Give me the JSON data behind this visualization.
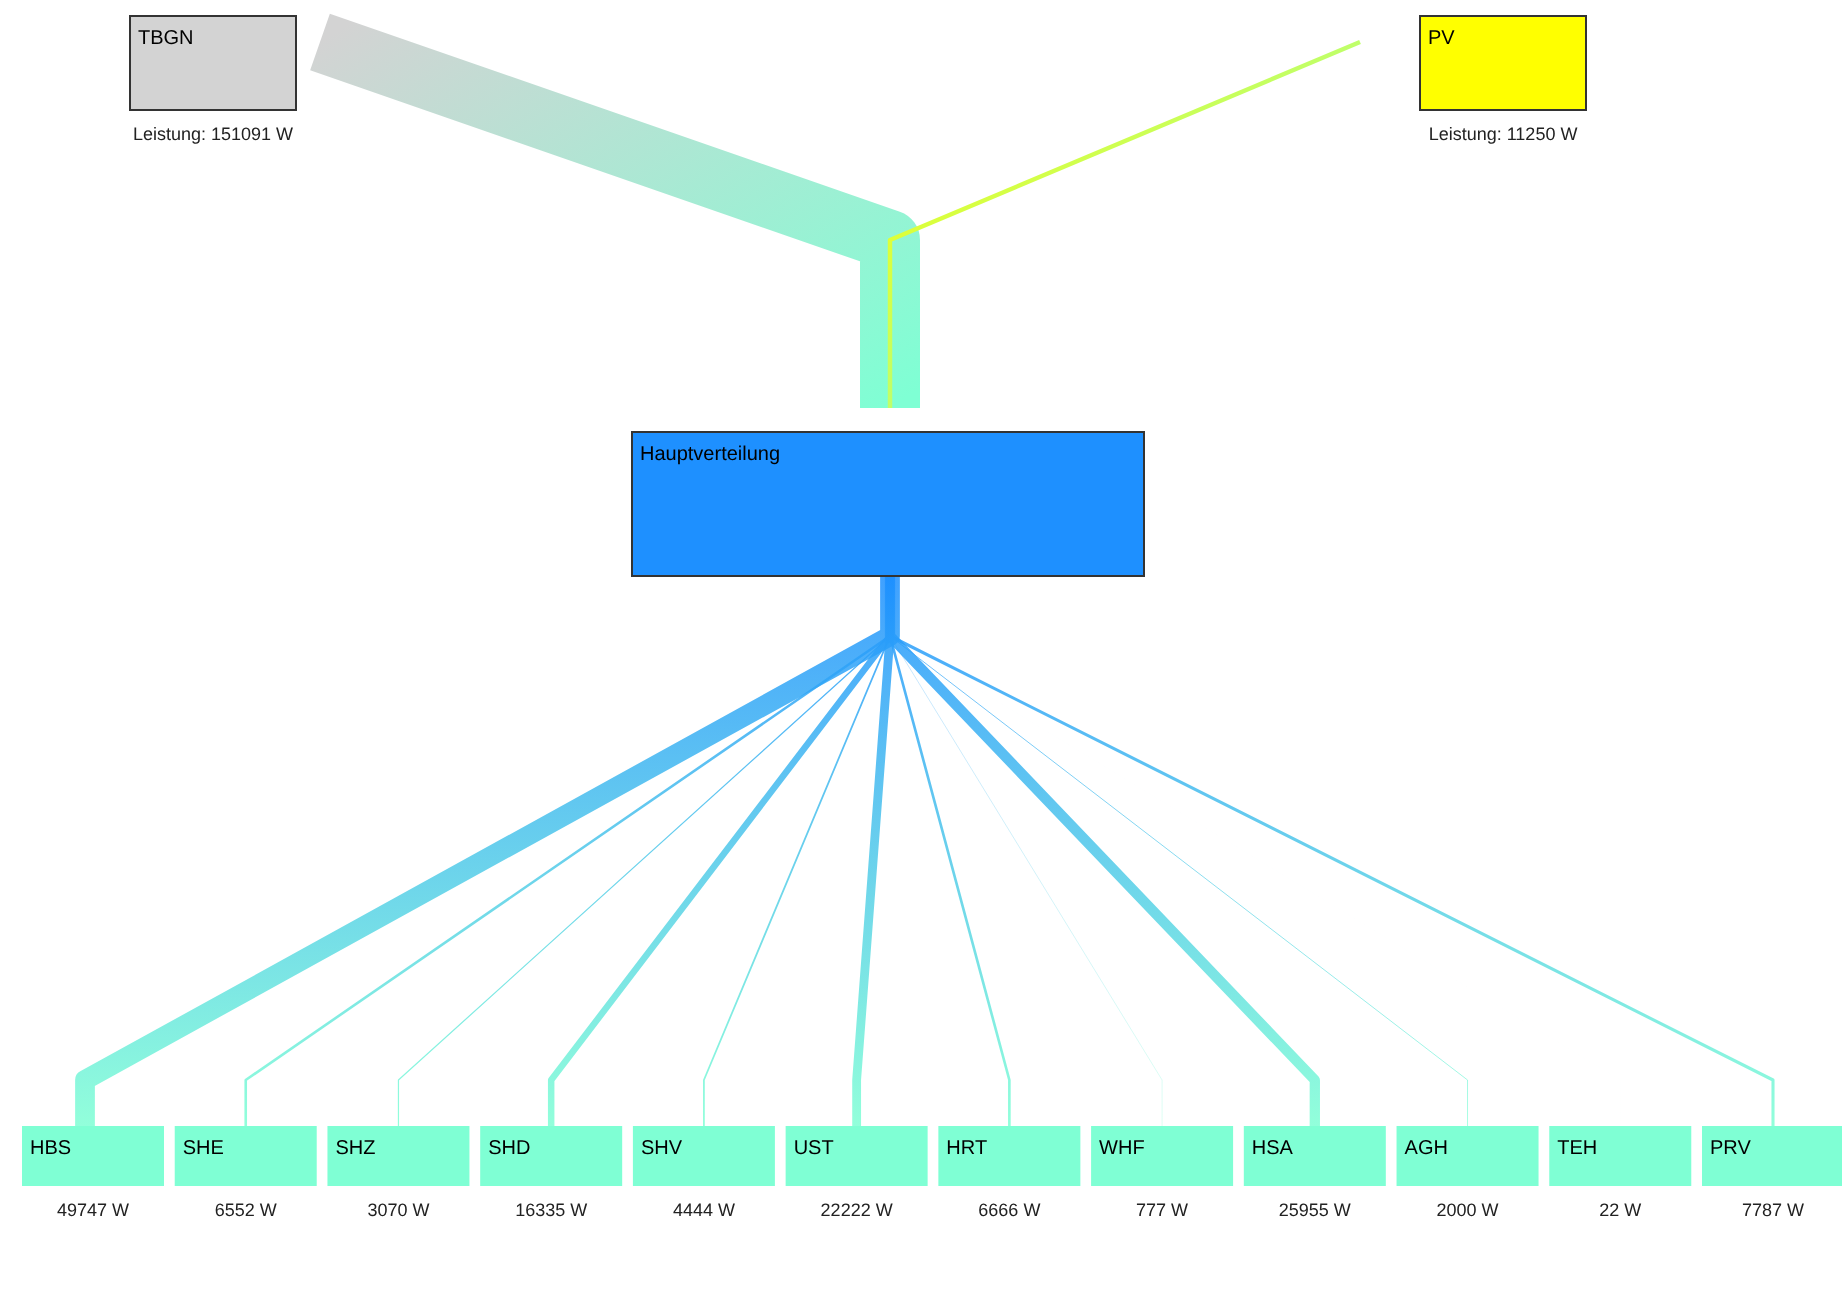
{
  "chart_data": {
    "type": "other",
    "categories": [
      "TBGN",
      "PV",
      "Hauptverteilung",
      "HBS",
      "SHE",
      "SHZ",
      "SHD",
      "SHV",
      "UST",
      "HRT",
      "WHF",
      "HSA",
      "AGH",
      "TEH",
      "PRV"
    ],
    "values": [
      151091,
      11250,
      null,
      49747,
      6552,
      3070,
      16335,
      4444,
      22222,
      6666,
      777,
      25955,
      2000,
      22,
      7787
    ],
    "value_labels": [
      "Leistung: 151091 W",
      "Leistung: 11250 W",
      null,
      "49747 W",
      "6552 W",
      "3070 W",
      "16335 W",
      "4444 W",
      "22222 W",
      "6666 W",
      "777 W",
      "25955 W",
      "2000 W",
      "22 W",
      "7787 W"
    ],
    "colors": [
      "#d3d3d3",
      "#ffff00",
      "#1e90ff",
      "#7fffd4",
      "#7fffd4",
      "#7fffd4",
      "#7fffd4",
      "#7fffd4",
      "#7fffd4",
      "#7fffd4",
      "#7fffd4",
      "#7fffd4",
      "#7fffd4",
      "#7fffd4",
      "#7fffd4"
    ]
  }
}
